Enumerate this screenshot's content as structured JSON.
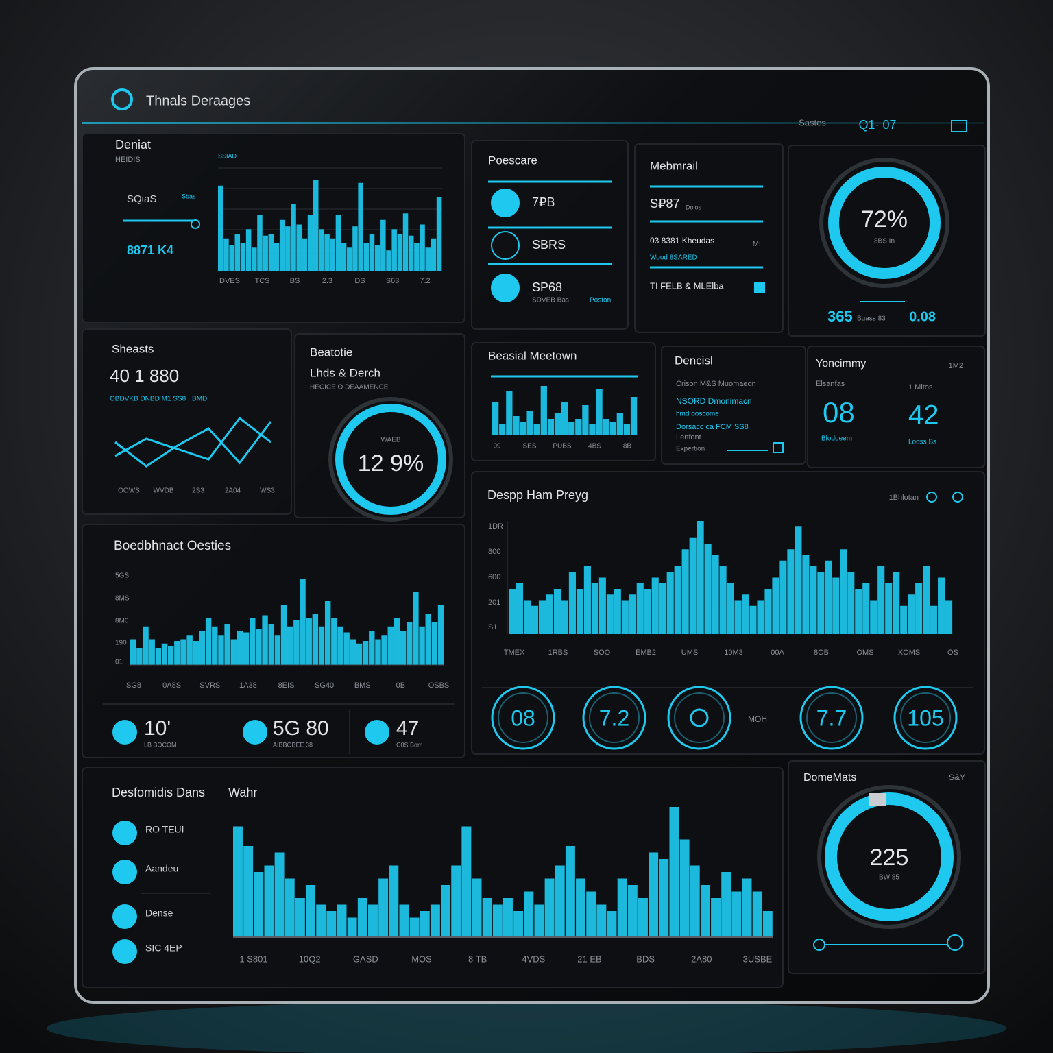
{
  "header": {
    "title": "Thnals Deraages",
    "status": "Sastes",
    "icons": "Q1· 07"
  },
  "deniat": {
    "title": "Deniat",
    "subtitle": "HEIDIS",
    "chart_label": "SSIAD",
    "stat_label": "SQiaS",
    "stat_small": "Sbas",
    "stat_value": "8871 K4",
    "x_labels": [
      "DVES",
      "TCS",
      "BS",
      "2.3",
      "DS",
      "S63",
      "7.2"
    ],
    "bars": [
      92,
      35,
      28,
      40,
      30,
      45,
      25,
      60,
      38,
      40,
      30,
      55,
      48,
      72,
      50,
      35,
      60,
      98,
      45,
      40,
      35,
      60,
      30,
      25,
      48,
      95,
      30,
      40,
      28,
      55,
      22,
      45,
      40,
      62,
      38,
      30,
      50,
      25,
      35,
      80
    ]
  },
  "poescare": {
    "title": "Poescare",
    "items": [
      "7₽B",
      "SBRS",
      "SP68"
    ],
    "sub": "SDVEB Bas",
    "tag": "Poston"
  },
  "mebmrail": {
    "title": "Mebmrail",
    "value": "S₽87",
    "value_note": "Dolos",
    "row1": "03 8381 Kheudas",
    "row1_tag": "MI",
    "row2": "Wood 8SARED",
    "row3": "TI FELB & MLElba"
  },
  "ring_panel": {
    "value": "72%",
    "sub": "8BS In",
    "footer": "365",
    "footer_small": "Buass 83",
    "footer_right": "0.08"
  },
  "sheasts": {
    "title": "Sheasts",
    "value": "40 1 880",
    "legend": "OBDVKB DNBD  M1 SS8 · BMD",
    "x_labels": [
      "OOWS",
      "WVDB",
      "2S3",
      "2A04",
      "WS3"
    ],
    "line1": [
      35,
      60,
      45,
      30,
      90,
      55
    ],
    "line2": [
      55,
      20,
      50,
      75,
      25,
      85
    ]
  },
  "beatotie": {
    "title": "Beatotie",
    "subtitle": "Lhds & Derch",
    "note": "HECICE O DEAAMENCE",
    "ring_label": "WAEB",
    "ring_value": "12 9%"
  },
  "beasial": {
    "title": "Beasial Meetown",
    "x_labels": [
      "09",
      "SES",
      "PUBS",
      "4BS",
      "8B"
    ],
    "bars": [
      60,
      20,
      80,
      35,
      25,
      45,
      20,
      90,
      30,
      40,
      60,
      25,
      30,
      55,
      20,
      85,
      30,
      25,
      40,
      20,
      70
    ]
  },
  "dencisl": {
    "title": "Dencisl",
    "lines": [
      "Crison M&S Muomaeon",
      "NSORD Dmonimacn",
      "hmd ooscome",
      "Dorsacc ca FCM SS8",
      "Lenfont",
      "Expertion"
    ]
  },
  "yoncimmy": {
    "title": "Yoncimmy",
    "corner": "1M2",
    "left_label": "Elsanfas",
    "left_value": "08",
    "left_sub": "Blodoeem",
    "right_label": "1 Mitos",
    "right_value": "42",
    "right_sub": "Looss Bs"
  },
  "boed": {
    "title": "Boedbhnact Oesties",
    "y_labels": [
      "5GS",
      "8MS",
      "8M0",
      "190",
      "01"
    ],
    "x_labels": [
      "SG8",
      "0A8S",
      "SVRS",
      "1A38",
      "8EIS",
      "SG40",
      "BMS",
      "0B",
      "OSBS"
    ],
    "bars": [
      30,
      20,
      45,
      30,
      20,
      25,
      22,
      28,
      30,
      35,
      28,
      40,
      55,
      45,
      35,
      48,
      30,
      40,
      38,
      55,
      42,
      58,
      48,
      35,
      70,
      45,
      52,
      100,
      55,
      60,
      45,
      75,
      55,
      45,
      38,
      30,
      25,
      28,
      40,
      30,
      35,
      45,
      55,
      40,
      50,
      85,
      45,
      60,
      50,
      70
    ],
    "stats": [
      "10'",
      "5G 80",
      "47"
    ],
    "stat_labels": [
      "LB BOCOM",
      "AIBBOBEE 38",
      "C0S Bom"
    ]
  },
  "despp": {
    "title": "Despp Ham Preyg",
    "corner": "1Bhlotan",
    "y_labels": [
      "1DR",
      "800",
      "600",
      "201",
      "S1"
    ],
    "x_labels": [
      "TMEX",
      "1RBS",
      "SOO",
      "EMB2",
      "UMS",
      "10M3",
      "00A",
      "8OB",
      "OMS",
      "XOMS",
      "OS"
    ],
    "bars": [
      40,
      45,
      30,
      25,
      30,
      35,
      40,
      30,
      55,
      40,
      60,
      45,
      50,
      35,
      40,
      30,
      35,
      45,
      40,
      50,
      45,
      55,
      60,
      75,
      85,
      100,
      80,
      70,
      60,
      45,
      30,
      35,
      25,
      30,
      40,
      50,
      65,
      75,
      95,
      70,
      60,
      55,
      65,
      50,
      75,
      55,
      40,
      45,
      30,
      60,
      45,
      55,
      25,
      35,
      45,
      60,
      25,
      50,
      30
    ],
    "gauges": [
      "08",
      "7.2",
      "7.7",
      "105"
    ],
    "gauge_label": "MOH"
  },
  "desfom": {
    "title": "Desfomidis Dans",
    "chart_title": "Wahr",
    "items": [
      "RO TEUI",
      "Aandeu",
      "Dense",
      "SIC 4EP"
    ],
    "x_labels": [
      "1 S801",
      "10Q2",
      "GASD",
      "MOS",
      "8 TB",
      "4VDS",
      "21 EB",
      "BDS",
      "2A80",
      "3USBE"
    ],
    "bars": [
      85,
      70,
      50,
      55,
      65,
      45,
      30,
      40,
      25,
      20,
      25,
      15,
      30,
      25,
      45,
      55,
      25,
      15,
      20,
      25,
      40,
      55,
      85,
      45,
      30,
      25,
      30,
      20,
      35,
      25,
      45,
      55,
      70,
      45,
      35,
      25,
      20,
      45,
      40,
      30,
      65,
      60,
      100,
      75,
      55,
      40,
      30,
      50,
      35,
      45,
      35,
      20
    ]
  },
  "domemats": {
    "title": "DomeMats",
    "corner": "S&Y",
    "ring_value": "225",
    "ring_sub": "BW 85"
  }
}
